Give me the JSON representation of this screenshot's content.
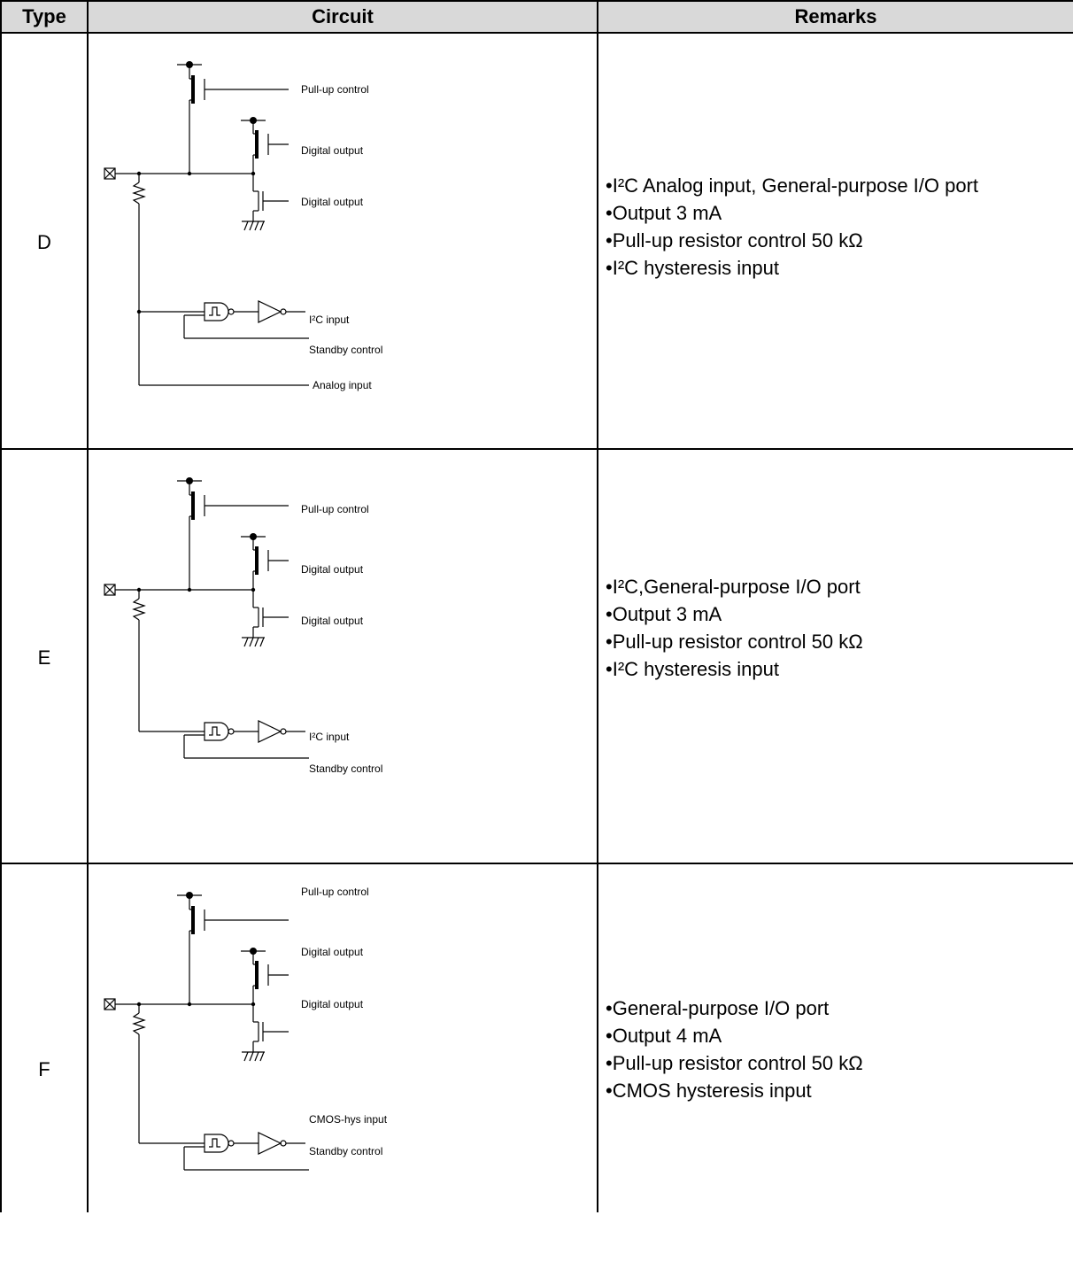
{
  "table": {
    "headers": {
      "type": "Type",
      "circuit": "Circuit",
      "remarks": "Remarks"
    },
    "rows": [
      {
        "type": "D",
        "circuit_labels": {
          "pullup": "Pull-up control",
          "digital_out_1": "Digital output",
          "digital_out_2": "Digital output",
          "input": "I²C input",
          "standby": "Standby control",
          "analog": "Analog input"
        },
        "remarks": [
          "•I²C Analog input, General-purpose I/O port",
          "•Output 3 mA",
          "•Pull-up resistor control 50 kΩ",
          "•I²C hysteresis input"
        ]
      },
      {
        "type": "E",
        "circuit_labels": {
          "pullup": "Pull-up control",
          "digital_out_1": "Digital output",
          "digital_out_2": "Digital output",
          "input": "I²C input",
          "standby": "Standby control"
        },
        "remarks": [
          "•I²C,General-purpose I/O port",
          "•Output 3 mA",
          "•Pull-up resistor control 50 kΩ",
          "•I²C hysteresis input"
        ]
      },
      {
        "type": "F",
        "circuit_labels": {
          "pullup": "Pull-up control",
          "digital_out_1": "Digital output",
          "digital_out_2": "Digital output",
          "input": "CMOS-hys input",
          "standby": "Standby control"
        },
        "remarks": [
          "•General-purpose I/O port",
          "•Output 4 mA",
          "•Pull-up resistor control 50 kΩ",
          "•CMOS hysteresis input"
        ]
      }
    ]
  }
}
